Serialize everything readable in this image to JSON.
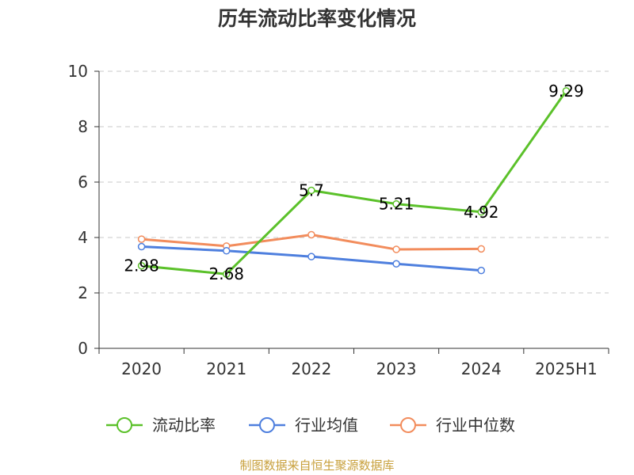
{
  "title": "历年流动比率变化情况",
  "source": "制图数据来自恒生聚源数据库",
  "chart_data": {
    "type": "line",
    "title": "历年流动比率变化情况",
    "categories": [
      "2020",
      "2021",
      "2022",
      "2023",
      "2024",
      "2025H1"
    ],
    "ylim": [
      0,
      10
    ],
    "yticks": [
      0,
      2,
      4,
      6,
      8,
      10
    ],
    "grid": true,
    "legend_position": "bottom",
    "series": [
      {
        "name": "流动比率",
        "color": "#5bc12a",
        "values": [
          2.98,
          2.68,
          5.7,
          5.21,
          4.92,
          9.29
        ],
        "labels": [
          "2.98",
          "2.68",
          "5.7",
          "5.21",
          "4.92",
          "9.29"
        ]
      },
      {
        "name": "行业均值",
        "color": "#4e7fde",
        "values": [
          3.67,
          3.52,
          3.31,
          3.05,
          2.81,
          null
        ]
      },
      {
        "name": "行业中位数",
        "color": "#f28c5c",
        "values": [
          3.94,
          3.69,
          4.1,
          3.57,
          3.59,
          null
        ]
      }
    ]
  }
}
